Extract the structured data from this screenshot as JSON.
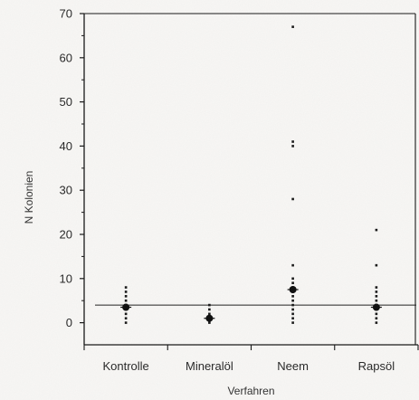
{
  "chart_data": {
    "type": "scatter",
    "title": "",
    "xlabel": "Verfahren",
    "ylabel": "N Kolonien",
    "categories": [
      "Kontrolle",
      "Mineralöl",
      "Neem",
      "Rapsöl"
    ],
    "ylim": [
      -5,
      70
    ],
    "yticks": [
      0,
      10,
      20,
      30,
      40,
      50,
      60,
      70
    ],
    "grid": false,
    "reference_line": 4,
    "series": [
      {
        "values": [
          [
            0,
            1,
            2,
            3,
            3.5,
            4,
            5,
            6,
            7,
            8
          ],
          [
            0,
            0.5,
            1,
            1.5,
            2,
            3,
            4
          ],
          [
            0,
            1,
            2,
            3,
            4,
            5,
            6,
            7,
            8,
            9,
            10,
            13,
            28,
            40,
            41,
            67
          ],
          [
            0,
            1,
            2,
            3,
            4,
            5,
            6,
            7,
            8,
            13,
            21
          ]
        ],
        "means": [
          3.5,
          1,
          7.5,
          3.5
        ]
      }
    ]
  }
}
